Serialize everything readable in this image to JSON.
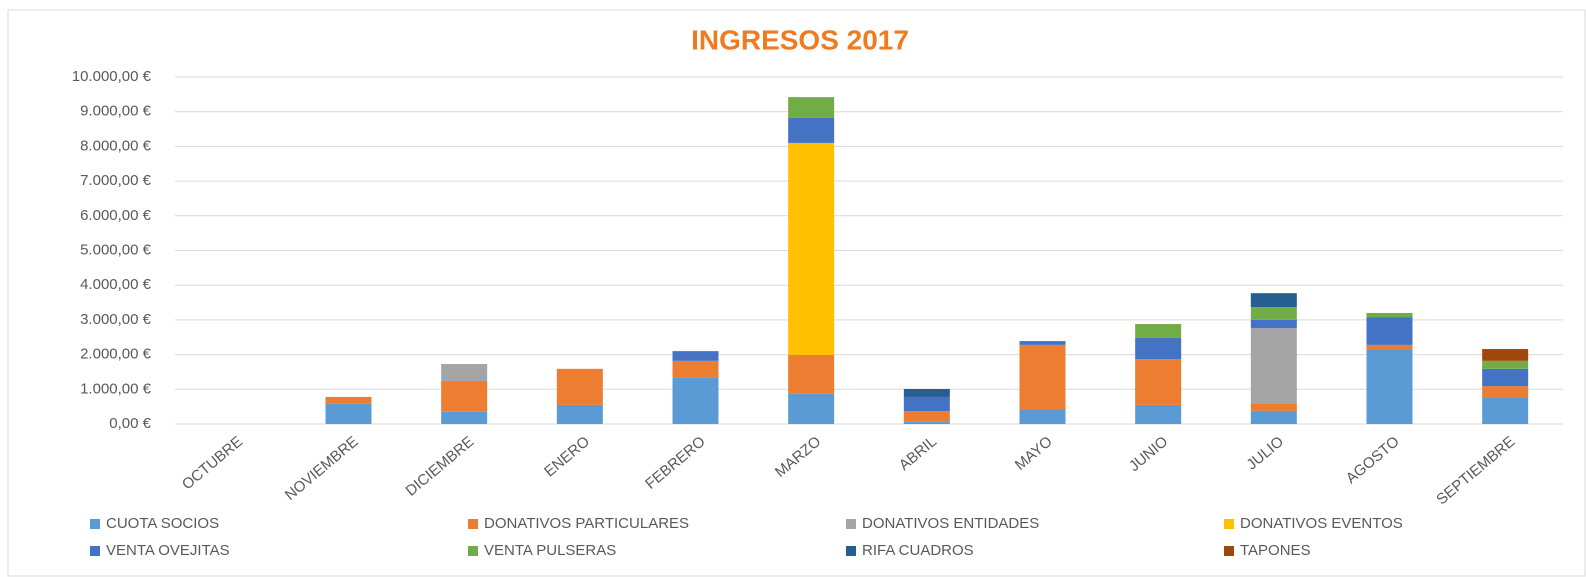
{
  "chart_data": {
    "type": "stacked_bar",
    "title": "INGRESOS 2017",
    "categories": [
      "OCTUBRE",
      "NOVIEMBRE",
      "DICIEMBRE",
      "ENERO",
      "FEBRERO",
      "MARZO",
      "ABRIL",
      "MAYO",
      "JUNIO",
      "JULIO",
      "AGOSTO",
      "SEPTIEMBRE"
    ],
    "series": [
      {
        "name": "CUOTA SOCIOS",
        "color": "#5b9bd5",
        "values": [
          0,
          580,
          350,
          550,
          1350,
          870,
          80,
          420,
          550,
          380,
          2160,
          750
        ]
      },
      {
        "name": "DONATIVOS PARTICULARES",
        "color": "#ed7d31",
        "values": [
          0,
          200,
          890,
          1040,
          470,
          1120,
          290,
          1860,
          1320,
          220,
          120,
          340
        ]
      },
      {
        "name": "DONATIVOS ENTIDADES",
        "color": "#a5a5a5",
        "values": [
          0,
          0,
          490,
          0,
          0,
          0,
          0,
          0,
          0,
          2160,
          0,
          0
        ]
      },
      {
        "name": "DONATIVOS EVENTOS",
        "color": "#ffc000",
        "values": [
          0,
          0,
          0,
          0,
          0,
          6110,
          0,
          0,
          0,
          0,
          0,
          0
        ]
      },
      {
        "name": "VENTA OVEJITAS",
        "color": "#4472c4",
        "values": [
          0,
          0,
          0,
          0,
          280,
          720,
          410,
          110,
          610,
          240,
          800,
          500
        ]
      },
      {
        "name": "VENTA PULSERAS",
        "color": "#70ad47",
        "values": [
          0,
          0,
          0,
          0,
          0,
          600,
          0,
          0,
          400,
          370,
          120,
          230
        ]
      },
      {
        "name": "RIFA CUADROS",
        "color": "#255e91",
        "values": [
          0,
          0,
          0,
          0,
          0,
          0,
          230,
          0,
          0,
          400,
          0,
          0
        ]
      },
      {
        "name": "TAPONES",
        "color": "#9e480e",
        "values": [
          0,
          0,
          0,
          0,
          0,
          0,
          0,
          0,
          0,
          0,
          0,
          340
        ]
      }
    ],
    "ylim": [
      0,
      10000
    ],
    "yticks": [
      {
        "value": 0,
        "label": "0,00 €"
      },
      {
        "value": 1000,
        "label": "1.000,00 €"
      },
      {
        "value": 2000,
        "label": "2.000,00 €"
      },
      {
        "value": 3000,
        "label": "3.000,00 €"
      },
      {
        "value": 4000,
        "label": "4.000,00 €"
      },
      {
        "value": 5000,
        "label": "5.000,00 €"
      },
      {
        "value": 6000,
        "label": "6.000,00 €"
      },
      {
        "value": 7000,
        "label": "7.000,00 €"
      },
      {
        "value": 8000,
        "label": "8.000,00 €"
      },
      {
        "value": 9000,
        "label": "9.000,00 €"
      },
      {
        "value": 10000,
        "label": "10.000,00 €"
      }
    ],
    "grid": true,
    "legend": "bottom"
  }
}
